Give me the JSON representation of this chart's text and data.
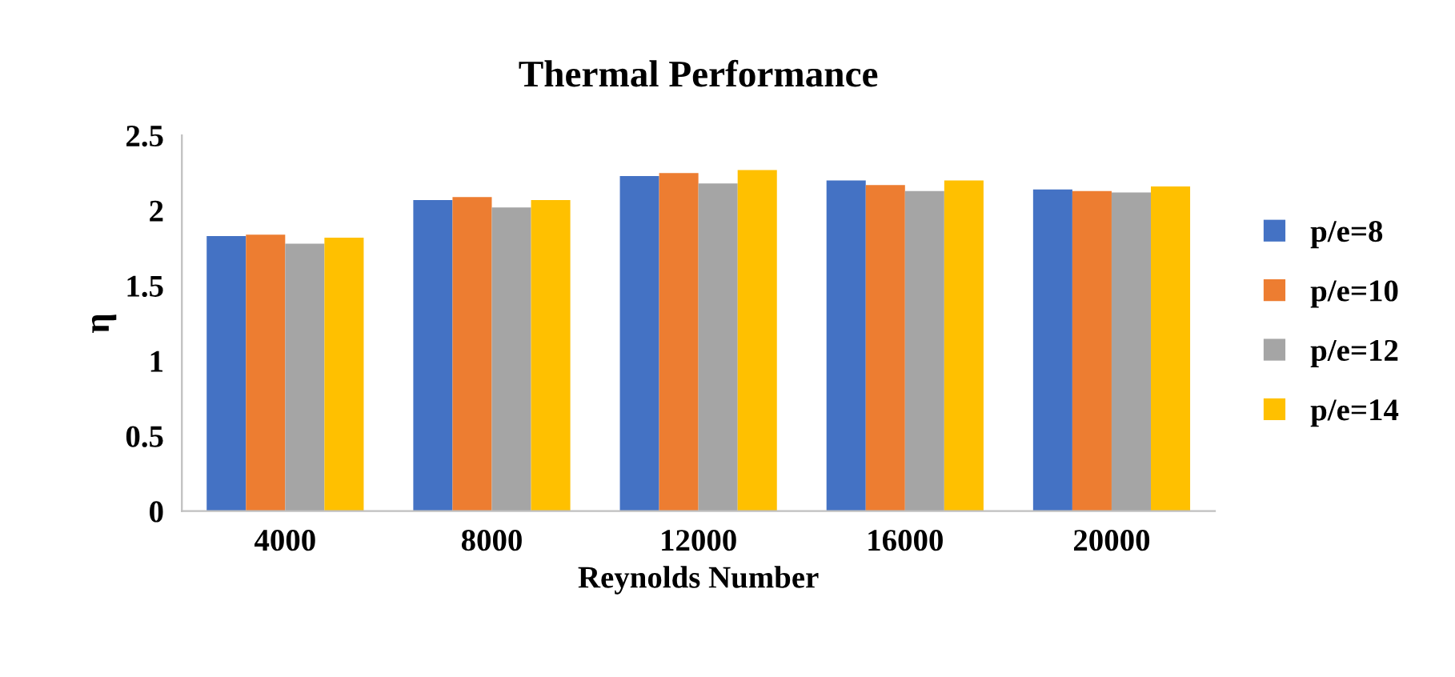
{
  "chart_data": {
    "type": "bar",
    "title": "Thermal Performance",
    "xlabel": "Reynolds Number",
    "ylabel": "η",
    "categories": [
      "4000",
      "8000",
      "12000",
      "16000",
      "20000"
    ],
    "series": [
      {
        "name": "p/e=8",
        "color": "#4472c4",
        "values": [
          1.83,
          2.07,
          2.23,
          2.2,
          2.14
        ]
      },
      {
        "name": "p/e=10",
        "color": "#ed7d31",
        "values": [
          1.84,
          2.09,
          2.25,
          2.17,
          2.13
        ]
      },
      {
        "name": "p/e=12",
        "color": "#a5a5a5",
        "values": [
          1.78,
          2.02,
          2.18,
          2.13,
          2.12
        ]
      },
      {
        "name": "p/e=14",
        "color": "#ffc000",
        "values": [
          1.82,
          2.07,
          2.27,
          2.2,
          2.16
        ]
      }
    ],
    "ylim": [
      0,
      2.5
    ],
    "yticks": [
      0,
      0.5,
      1,
      1.5,
      2,
      2.5
    ],
    "grid": false,
    "legend": "right"
  }
}
